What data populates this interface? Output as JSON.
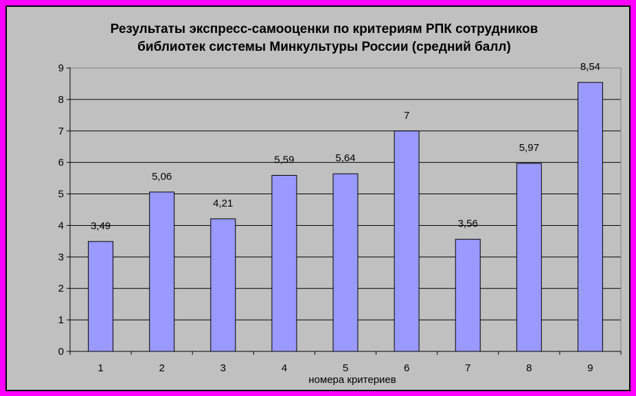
{
  "chart_data": {
    "type": "bar",
    "title_line1": "Результаты экспресс-самооценки по критериям РПК сотрудников",
    "title_line2": "библиотек системы Минкультуры России (средний балл)",
    "xlabel": "номера критериев",
    "ylabel": "",
    "categories": [
      "1",
      "2",
      "3",
      "4",
      "5",
      "6",
      "7",
      "8",
      "9"
    ],
    "values": [
      3.49,
      5.06,
      4.21,
      5.59,
      5.64,
      7,
      3.56,
      5.97,
      8.54
    ],
    "data_labels": [
      "3,49",
      "5,06",
      "4,21",
      "5,59",
      "5,64",
      "7",
      "3,56",
      "5,97",
      "8,54"
    ],
    "ylim": [
      0,
      9
    ],
    "yticks": [
      "0",
      "1",
      "2",
      "3",
      "4",
      "5",
      "6",
      "7",
      "8",
      "9"
    ],
    "grid": true,
    "legend": "none",
    "colors": {
      "bar_fill": "#9999ff",
      "plot_bg": "#c0c0c0",
      "outer_border": "#ff00ff"
    }
  }
}
